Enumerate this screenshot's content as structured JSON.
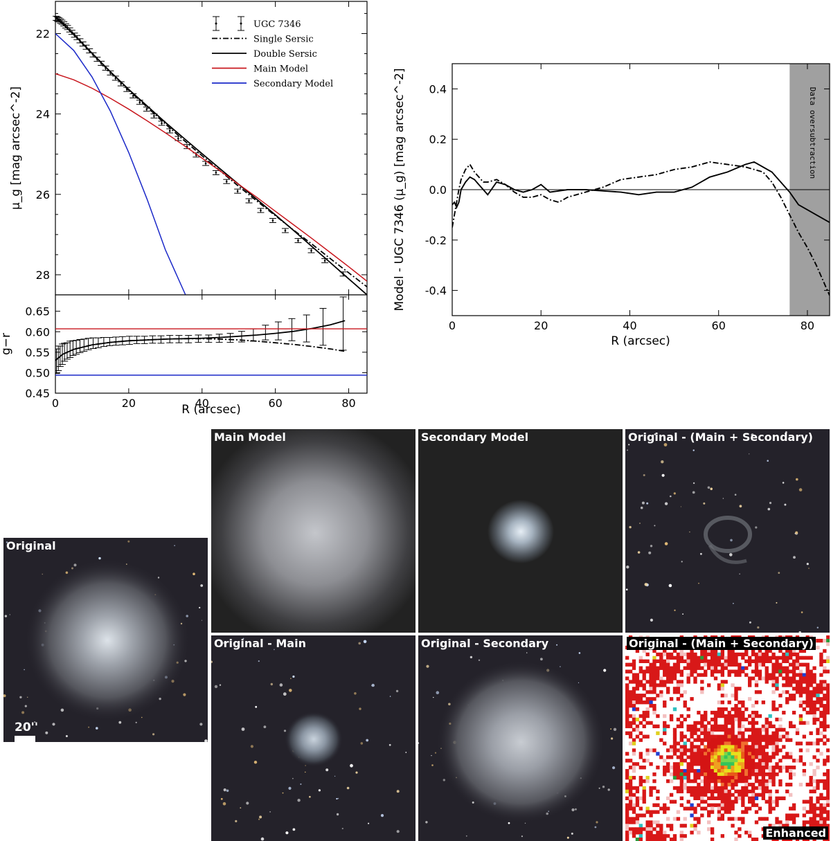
{
  "chart_data": [
    {
      "id": "surface_brightness_profile",
      "type": "scatter",
      "xlabel": "R (arcsec)",
      "ylabel": "μ_g [mag arcsec^-2]",
      "xlim": [
        0,
        85
      ],
      "ylim": [
        28.5,
        21.2
      ],
      "y_inverted": true,
      "xticks": [
        0,
        20,
        40,
        60,
        80
      ],
      "yticks": [
        22,
        24,
        26,
        28
      ],
      "legend_position": "top-right",
      "legend": [
        "UGC 7346",
        "Single Sersic",
        "Double Sersic",
        "Main Model",
        "Secondary Model"
      ],
      "series": [
        {
          "name": "UGC 7346",
          "style": "errorbar",
          "color": "#000000",
          "x": [
            0.2,
            0.6,
            1.0,
            1.4,
            1.8,
            2.3,
            2.8,
            3.3,
            3.9,
            4.5,
            5.2,
            5.9,
            6.7,
            7.5,
            8.4,
            9.3,
            10.3,
            11.4,
            12.5,
            13.7,
            15.0,
            16.4,
            17.9,
            19.5,
            21.2,
            23.0,
            24.9,
            26.9,
            29.0,
            31.2,
            33.5,
            35.9,
            38.4,
            41.0,
            43.8,
            46.7,
            49.7,
            52.8,
            56.0,
            59.3,
            62.7,
            66.2,
            69.8,
            73.5,
            78.5
          ],
          "y": [
            21.62,
            21.64,
            21.66,
            21.69,
            21.72,
            21.76,
            21.81,
            21.85,
            21.91,
            21.97,
            22.04,
            22.1,
            22.18,
            22.26,
            22.34,
            22.43,
            22.53,
            22.64,
            22.74,
            22.86,
            22.98,
            23.11,
            23.25,
            23.39,
            23.55,
            23.71,
            23.88,
            24.05,
            24.23,
            24.42,
            24.61,
            24.81,
            25.02,
            25.23,
            25.46,
            25.68,
            25.92,
            26.16,
            26.4,
            26.65,
            26.9,
            27.15,
            27.4,
            27.65,
            27.98
          ],
          "yerr": [
            0.03,
            0.03,
            0.03,
            0.03,
            0.03,
            0.03,
            0.03,
            0.03,
            0.03,
            0.03,
            0.03,
            0.03,
            0.03,
            0.03,
            0.03,
            0.03,
            0.03,
            0.03,
            0.03,
            0.03,
            0.03,
            0.03,
            0.03,
            0.03,
            0.03,
            0.03,
            0.03,
            0.03,
            0.03,
            0.03,
            0.03,
            0.03,
            0.03,
            0.03,
            0.03,
            0.03,
            0.03,
            0.03,
            0.03,
            0.03,
            0.03,
            0.03,
            0.03,
            0.03,
            0.03
          ]
        },
        {
          "name": "Single Sersic",
          "style": "dashdot",
          "color": "#000000",
          "x": [
            0,
            5,
            10,
            15,
            20,
            25,
            30,
            35,
            40,
            45,
            50,
            55,
            60,
            65,
            70,
            75,
            80,
            85
          ],
          "y": [
            21.58,
            22.02,
            22.5,
            22.96,
            23.41,
            23.83,
            24.25,
            24.65,
            25.04,
            25.42,
            25.8,
            26.17,
            26.53,
            26.89,
            27.24,
            27.6,
            27.95,
            28.3
          ]
        },
        {
          "name": "Double Sersic",
          "style": "solid",
          "color": "#000000",
          "x": [
            0,
            5,
            10,
            15,
            20,
            25,
            30,
            35,
            40,
            45,
            50,
            55,
            60,
            65,
            70,
            75,
            80,
            85
          ],
          "y": [
            21.6,
            22.02,
            22.49,
            22.95,
            23.39,
            23.8,
            24.21,
            24.6,
            24.99,
            25.37,
            25.75,
            26.13,
            26.51,
            26.9,
            27.3,
            27.7,
            28.1,
            28.5
          ]
        },
        {
          "name": "Main Model",
          "style": "solid",
          "color": "#c8161d",
          "x": [
            0,
            5,
            10,
            15,
            20,
            25,
            30,
            35,
            40,
            45,
            50,
            55,
            60,
            65,
            70,
            75,
            80,
            85
          ],
          "y": [
            23.0,
            23.15,
            23.36,
            23.61,
            23.88,
            24.17,
            24.47,
            24.78,
            25.1,
            25.42,
            25.75,
            26.08,
            26.42,
            26.76,
            27.1,
            27.45,
            27.8,
            28.16
          ]
        },
        {
          "name": "Secondary Model",
          "style": "solid",
          "color": "#1a28c8",
          "x": [
            0,
            5,
            10,
            15,
            20,
            25,
            30,
            35.5
          ],
          "y": [
            22.0,
            22.42,
            23.08,
            23.93,
            24.96,
            26.12,
            27.38,
            28.5
          ]
        }
      ]
    },
    {
      "id": "color_profile",
      "type": "scatter",
      "xlabel": "R (arcsec)",
      "ylabel": "g−r",
      "xlim": [
        0,
        85
      ],
      "ylim": [
        0.45,
        0.69
      ],
      "xticks": [
        0,
        20,
        40,
        60,
        80
      ],
      "yticks": [
        0.45,
        0.5,
        0.55,
        0.6,
        0.65
      ],
      "series": [
        {
          "name": "UGC 7346",
          "style": "errorbar",
          "color": "#000000",
          "x": [
            0.3,
            0.8,
            1.3,
            1.9,
            2.5,
            3.2,
            4.0,
            4.8,
            5.7,
            6.7,
            7.8,
            9.0,
            10.3,
            11.7,
            13.2,
            14.8,
            16.5,
            18.3,
            20.2,
            22.2,
            24.3,
            26.5,
            28.8,
            31.2,
            33.7,
            36.3,
            39.0,
            41.8,
            44.7,
            47.7,
            50.8,
            54.0,
            57.3,
            60.8,
            64.5,
            68.5,
            73.0,
            78.5
          ],
          "y": [
            0.528,
            0.535,
            0.54,
            0.545,
            0.55,
            0.553,
            0.557,
            0.56,
            0.562,
            0.565,
            0.567,
            0.57,
            0.572,
            0.573,
            0.575,
            0.576,
            0.577,
            0.578,
            0.579,
            0.58,
            0.58,
            0.581,
            0.581,
            0.582,
            0.582,
            0.582,
            0.583,
            0.583,
            0.584,
            0.585,
            0.588,
            0.592,
            0.598,
            0.602,
            0.605,
            0.608,
            0.612,
            0.62
          ],
          "yerr": [
            0.03,
            0.03,
            0.025,
            0.025,
            0.022,
            0.02,
            0.02,
            0.018,
            0.017,
            0.016,
            0.015,
            0.014,
            0.013,
            0.012,
            0.011,
            0.01,
            0.01,
            0.01,
            0.01,
            0.009,
            0.009,
            0.009,
            0.009,
            0.009,
            0.009,
            0.009,
            0.009,
            0.009,
            0.01,
            0.011,
            0.013,
            0.015,
            0.018,
            0.022,
            0.027,
            0.033,
            0.045,
            0.065
          ]
        },
        {
          "name": "Single Sersic",
          "style": "dashdot",
          "color": "#000000",
          "x": [
            0,
            2,
            5,
            10,
            15,
            20,
            25,
            30,
            35,
            40,
            45,
            50,
            55,
            60,
            65,
            70,
            75,
            79
          ],
          "y": [
            0.53,
            0.545,
            0.557,
            0.568,
            0.574,
            0.578,
            0.58,
            0.582,
            0.583,
            0.583,
            0.582,
            0.58,
            0.577,
            0.573,
            0.569,
            0.564,
            0.558,
            0.552
          ]
        },
        {
          "name": "Double Sersic",
          "style": "solid",
          "color": "#000000",
          "x": [
            0,
            2,
            5,
            10,
            15,
            20,
            25,
            30,
            35,
            40,
            45,
            50,
            55,
            60,
            65,
            70,
            75,
            79
          ],
          "y": [
            0.53,
            0.545,
            0.557,
            0.568,
            0.574,
            0.578,
            0.58,
            0.582,
            0.583,
            0.584,
            0.586,
            0.589,
            0.592,
            0.596,
            0.601,
            0.608,
            0.617,
            0.627
          ]
        },
        {
          "name": "Main Model",
          "style": "solid",
          "color": "#c8161d",
          "x": [
            0,
            85
          ],
          "y": [
            0.607,
            0.607
          ]
        },
        {
          "name": "Secondary Model",
          "style": "solid",
          "color": "#1a28c8",
          "x": [
            0,
            85
          ],
          "y": [
            0.494,
            0.494
          ]
        }
      ]
    },
    {
      "id": "residual_profile",
      "type": "line",
      "xlabel": "R (arcsec)",
      "ylabel": "Model - UGC 7346 (μ_g) [mag arcsec^-2]",
      "xlim": [
        0,
        85
      ],
      "ylim": [
        -0.5,
        0.5
      ],
      "xticks": [
        0,
        20,
        40,
        60,
        80
      ],
      "yticks": [
        -0.4,
        -0.2,
        0.0,
        0.2,
        0.4
      ],
      "shaded_region": {
        "x_from": 76,
        "x_to": 85,
        "label": "Data oversubtraction",
        "color": "#a0a0a0"
      },
      "reference_line": 0.0,
      "series": [
        {
          "name": "Single Sersic",
          "style": "dashdot",
          "color": "#000000",
          "x": [
            0,
            0.5,
            1,
            1.5,
            2,
            3,
            4,
            5,
            6,
            7,
            8,
            10,
            12,
            14,
            16,
            18,
            20,
            22,
            24,
            26,
            28,
            30,
            34,
            38,
            42,
            46,
            50,
            54,
            58,
            62,
            66,
            70,
            72,
            74,
            76,
            78,
            80,
            82,
            85
          ],
          "y": [
            -0.15,
            -0.1,
            -0.05,
            0.0,
            0.04,
            0.08,
            0.1,
            0.07,
            0.05,
            0.03,
            0.03,
            0.04,
            0.02,
            -0.01,
            -0.03,
            -0.03,
            -0.02,
            -0.04,
            -0.05,
            -0.03,
            -0.02,
            -0.01,
            0.01,
            0.04,
            0.05,
            0.06,
            0.08,
            0.09,
            0.11,
            0.1,
            0.09,
            0.07,
            0.03,
            -0.03,
            -0.1,
            -0.17,
            -0.23,
            -0.3,
            -0.42
          ]
        },
        {
          "name": "Double Sersic",
          "style": "solid",
          "color": "#000000",
          "x": [
            0,
            0.5,
            1,
            1.5,
            2,
            3,
            4,
            5,
            6,
            7,
            8,
            10,
            12,
            14,
            16,
            18,
            20,
            22,
            26,
            30,
            34,
            38,
            42,
            46,
            50,
            54,
            58,
            62,
            66,
            68,
            72,
            76,
            78,
            80,
            82,
            85
          ],
          "y": [
            -0.06,
            -0.05,
            -0.07,
            -0.05,
            0.0,
            0.03,
            0.05,
            0.04,
            0.02,
            0.0,
            -0.02,
            0.03,
            0.02,
            0.0,
            -0.01,
            0.0,
            0.02,
            -0.01,
            0.0,
            0.0,
            -0.005,
            -0.01,
            -0.02,
            -0.01,
            -0.01,
            0.01,
            0.05,
            0.07,
            0.1,
            0.11,
            0.07,
            -0.01,
            -0.06,
            -0.08,
            -0.1,
            -0.13
          ]
        }
      ]
    }
  ],
  "panels": {
    "original": {
      "label": "Original",
      "scalebar": "20''"
    },
    "main_model": {
      "label": "Main Model"
    },
    "secondary_model": {
      "label": "Secondary Model"
    },
    "residual_both": {
      "label": "Original - (Main + Secondary)"
    },
    "original_minus_main": {
      "label": "Original - Main"
    },
    "original_minus_secondary": {
      "label": "Original - Secondary"
    },
    "enhanced": {
      "label": "Original - (Main + Secondary)",
      "badge": "Enhanced"
    }
  },
  "colors": {
    "main_model": "#c8161d",
    "secondary_model": "#1a28c8",
    "sky": "#24222a",
    "shade": "#a0a0a0"
  }
}
